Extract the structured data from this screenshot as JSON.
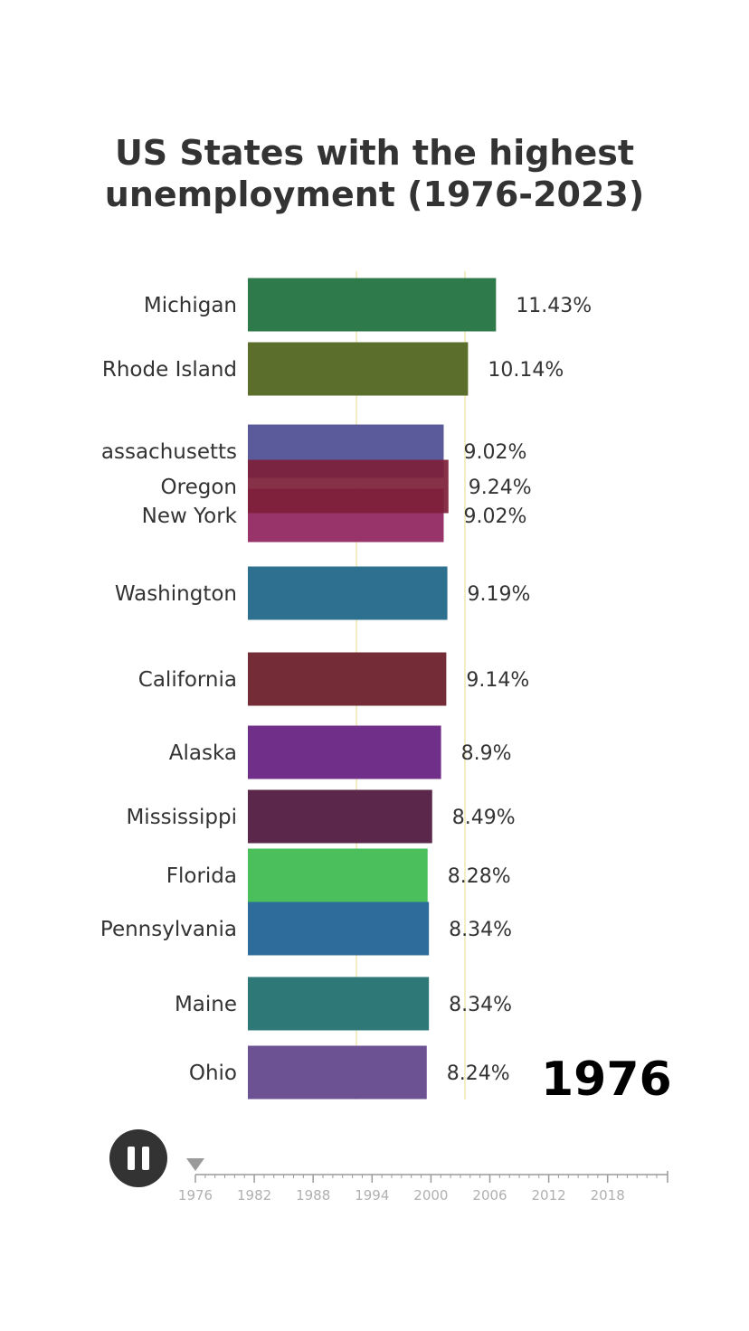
{
  "chart_data": {
    "type": "bar",
    "orientation": "horizontal",
    "title": "US States with the highest unemployment (1976-2023)",
    "title_lines": [
      "US States with the highest",
      "unemployment (1976-2023)"
    ],
    "current_year": "1976",
    "categories": [
      "Michigan",
      "Rhode Island",
      "assachusetts",
      "Oregon",
      "New York",
      "Washington",
      "California",
      "Alaska",
      "Mississippi",
      "Florida",
      "Pennsylvania",
      "Maine",
      "Ohio"
    ],
    "values": [
      11.43,
      10.14,
      9.02,
      9.24,
      9.02,
      9.19,
      9.14,
      8.9,
      8.49,
      8.28,
      8.34,
      8.34,
      8.24
    ],
    "value_labels": [
      "11.43%",
      "10.14%",
      "9.02%",
      "9.24%",
      "9.02%",
      "9.19%",
      "9.14%",
      "8.9%",
      "8.49%",
      "8.28%",
      "8.34%",
      "8.34%",
      "8.24%"
    ],
    "colors": [
      "#2e7a4a",
      "#5b6e2c",
      "#5b5b9b",
      "#7d1f3a",
      "#98346a",
      "#2e7090",
      "#742c36",
      "#70308a",
      "#5b284b",
      "#4bbf5b",
      "#2e6c9b",
      "#2e7878",
      "#6c5293"
    ],
    "xlim": [
      0,
      12
    ],
    "gridlines": [
      5,
      10
    ],
    "grid": true,
    "legend": "none"
  },
  "timeline": {
    "ticks": [
      "1976",
      "1982",
      "1988",
      "1994",
      "2000",
      "2006",
      "2012",
      "2018"
    ],
    "start": 1976,
    "end": 2023,
    "current": 1976
  },
  "controls": {
    "play_state": "pause"
  },
  "icons": {
    "play_button": "pause-icon",
    "timeline_marker": "triangle-down-icon"
  }
}
